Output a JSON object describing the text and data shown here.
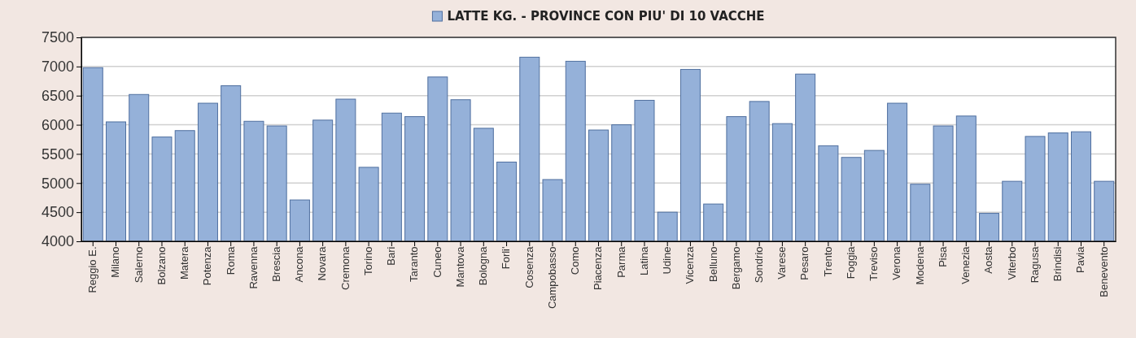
{
  "chart_data": {
    "type": "bar",
    "categories": [
      "Reggio E.",
      "Milano",
      "Salerno",
      "Bolzano",
      "Matera",
      "Potenza",
      "Roma",
      "Ravenna",
      "Brescia",
      "Ancona",
      "Novara",
      "Cremona",
      "Torino",
      "Bari",
      "Taranto",
      "Cuneo",
      "Mantova",
      "Bologna",
      "Forli'",
      "Cosenza",
      "Campobasso",
      "Como",
      "Piacenza",
      "Parma",
      "Latina",
      "Udine",
      "Vicenza",
      "Belluno",
      "Bergamo",
      "Sondrio",
      "Varese",
      "Pesaro",
      "Trento",
      "Foggia",
      "Treviso",
      "Verona",
      "Modena",
      "Pisa",
      "Venezia",
      "Aosta",
      "Viterbo",
      "Ragusa",
      "Brindisi",
      "Pavia",
      "Benevento"
    ],
    "series": [
      {
        "name": "LATTE KG. - PROVINCE CON PIU' DI 10 VACCHE",
        "color": "#95b1d9",
        "values": [
          6980,
          6050,
          6520,
          5790,
          5900,
          6370,
          6670,
          6060,
          5980,
          4710,
          6080,
          6440,
          5270,
          6200,
          6140,
          6820,
          6430,
          5940,
          5360,
          7160,
          5060,
          7090,
          5910,
          6000,
          6420,
          4500,
          6950,
          4640,
          6140,
          6400,
          6020,
          6870,
          5640,
          5440,
          5560,
          6370,
          4980,
          5980,
          6150,
          4480,
          5030,
          5800,
          5860,
          5880,
          5030
        ]
      }
    ],
    "ylim": [
      4000,
      7500
    ],
    "yticks": [
      4000,
      4500,
      5000,
      5500,
      6000,
      6500,
      7000,
      7500
    ],
    "grid": "y",
    "legend": "top"
  }
}
